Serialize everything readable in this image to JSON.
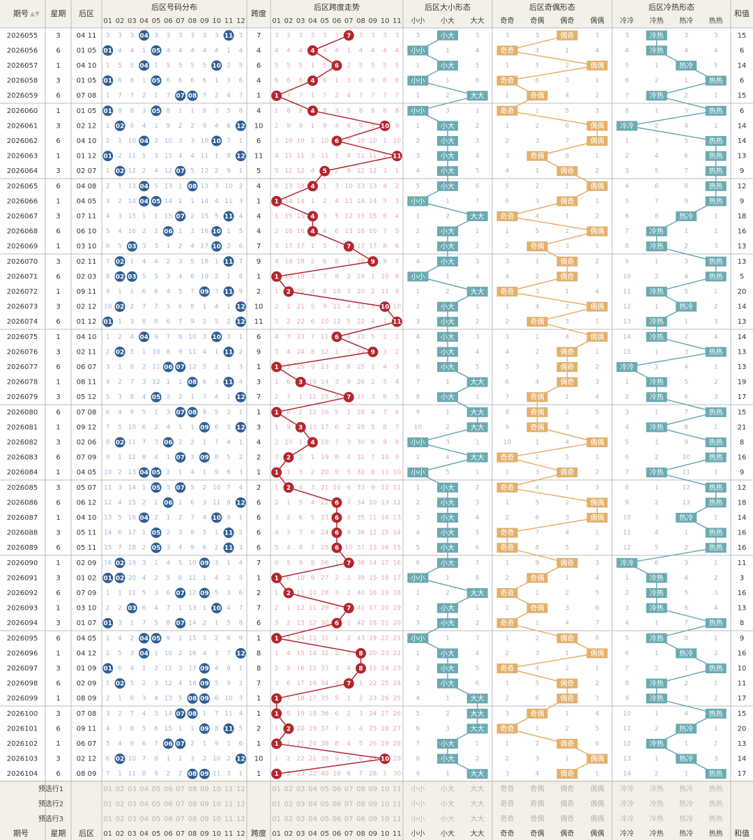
{
  "headers": {
    "issue": "期号",
    "weekday": "星期",
    "back": "后区",
    "distribution": "后区号码分布",
    "span": "跨度",
    "span_trend": "后区跨度走势",
    "size": "后区大小形态",
    "parity": "后区奇偶形态",
    "hotcold": "后区冷热形态",
    "sum": "和值",
    "sort_icon": "sort-icon"
  },
  "numbers": [
    "01",
    "02",
    "03",
    "04",
    "05",
    "06",
    "07",
    "08",
    "09",
    "10",
    "11",
    "12"
  ],
  "span_values": [
    "01",
    "02",
    "03",
    "04",
    "05",
    "06",
    "07",
    "08",
    "09",
    "10",
    "11"
  ],
  "size_labels": [
    "小小",
    "小大",
    "大大"
  ],
  "parity_labels": [
    "奇奇",
    "奇偶",
    "偶奇",
    "偶偶"
  ],
  "hotcold_labels": [
    "冷冷",
    "冷热",
    "热冷",
    "热热"
  ],
  "colors": {
    "ball": "#2f5f95",
    "span_ball": "#b3262e",
    "size_box": "#6aaab2",
    "parity_box": "#e3b06a",
    "hotcold_box": "#6aaab2",
    "header_bg": "#f3f0e8"
  },
  "preselect_rows": [
    "预选行1",
    "预选行2",
    "预选行3"
  ],
  "chart_data": {
    "type": "table",
    "rows": [
      {
        "issue": "2026055",
        "weekday": "3",
        "back": "04 11",
        "span": 7,
        "size": "小大",
        "parity": "偶奇",
        "hotcold": "冷热",
        "sum": 15
      },
      {
        "issue": "2026056",
        "weekday": "6",
        "back": "01 05",
        "span": 4,
        "size": "小小",
        "parity": "奇奇",
        "hotcold": "冷热",
        "sum": 6
      },
      {
        "issue": "2026057",
        "weekday": "1",
        "back": "04 10",
        "span": 6,
        "size": "小大",
        "parity": "偶偶",
        "hotcold": "热冷",
        "sum": 14
      },
      {
        "issue": "2026058",
        "weekday": "3",
        "back": "01 05",
        "span": 4,
        "size": "小小",
        "parity": "奇奇",
        "hotcold": "热热",
        "sum": 6
      },
      {
        "issue": "2026059",
        "weekday": "6",
        "back": "07 08",
        "span": 1,
        "size": "大大",
        "parity": "奇偶",
        "hotcold": "冷热",
        "sum": 15
      },
      {
        "issue": "2026060",
        "weekday": "1",
        "back": "01 05",
        "span": 4,
        "size": "小小",
        "parity": "奇奇",
        "hotcold": "热热",
        "sum": 6
      },
      {
        "issue": "2026061",
        "weekday": "3",
        "back": "02 12",
        "span": 10,
        "size": "小大",
        "parity": "偶偶",
        "hotcold": "冷冷",
        "sum": 14
      },
      {
        "issue": "2026062",
        "weekday": "6",
        "back": "04 10",
        "span": 6,
        "size": "小大",
        "parity": "偶偶",
        "hotcold": "热热",
        "sum": 14
      },
      {
        "issue": "2026063",
        "weekday": "1",
        "back": "01 12",
        "span": 11,
        "size": "小大",
        "parity": "奇偶",
        "hotcold": "热热",
        "sum": 13
      },
      {
        "issue": "2026064",
        "weekday": "3",
        "back": "02 07",
        "span": 5,
        "size": "小大",
        "parity": "偶奇",
        "hotcold": "热热",
        "sum": 9
      },
      {
        "issue": "2026065",
        "weekday": "6",
        "back": "04 08",
        "span": 4,
        "size": "小大",
        "parity": "偶偶",
        "hotcold": "热热",
        "sum": 12
      },
      {
        "issue": "2026066",
        "weekday": "1",
        "back": "04 05",
        "span": 1,
        "size": "小小",
        "parity": "偶奇",
        "hotcold": "热热",
        "sum": 9
      },
      {
        "issue": "2026067",
        "weekday": "3",
        "back": "07 11",
        "span": 4,
        "size": "大大",
        "parity": "奇奇",
        "hotcold": "热冷",
        "sum": 18
      },
      {
        "issue": "2026068",
        "weekday": "6",
        "back": "06 10",
        "span": 4,
        "size": "小大",
        "parity": "偶偶",
        "hotcold": "冷热",
        "sum": 16
      },
      {
        "issue": "2026069",
        "weekday": "1",
        "back": "03 10",
        "span": 7,
        "size": "小大",
        "parity": "奇偶",
        "hotcold": "冷热",
        "sum": 13
      },
      {
        "issue": "2026070",
        "weekday": "3",
        "back": "02 11",
        "span": 9,
        "size": "小大",
        "parity": "偶奇",
        "hotcold": "热热",
        "sum": 13
      },
      {
        "issue": "2026071",
        "weekday": "6",
        "back": "02 03",
        "span": 1,
        "size": "小小",
        "parity": "偶奇",
        "hotcold": "热热",
        "sum": 5
      },
      {
        "issue": "2026072",
        "weekday": "1",
        "back": "09 11",
        "span": 2,
        "size": "大大",
        "parity": "奇奇",
        "hotcold": "冷热",
        "sum": 20
      },
      {
        "issue": "2026073",
        "weekday": "3",
        "back": "02 12",
        "span": 10,
        "size": "小大",
        "parity": "偶偶",
        "hotcold": "热冷",
        "sum": 14
      },
      {
        "issue": "2026074",
        "weekday": "6",
        "back": "01 12",
        "span": 11,
        "size": "小大",
        "parity": "奇偶",
        "hotcold": "冷热",
        "sum": 13
      },
      {
        "issue": "2026075",
        "weekday": "1",
        "back": "04 10",
        "span": 6,
        "size": "小大",
        "parity": "偶偶",
        "hotcold": "冷热",
        "sum": 14
      },
      {
        "issue": "2026076",
        "weekday": "3",
        "back": "02 11",
        "span": 9,
        "size": "小大",
        "parity": "偶奇",
        "hotcold": "热热",
        "sum": 13
      },
      {
        "issue": "2026077",
        "weekday": "6",
        "back": "06 07",
        "span": 1,
        "size": "小大",
        "parity": "偶奇",
        "hotcold": "冷冷",
        "sum": 13
      },
      {
        "issue": "2026078",
        "weekday": "1",
        "back": "08 11",
        "span": 3,
        "size": "大大",
        "parity": "偶奇",
        "hotcold": "冷热",
        "sum": 19
      },
      {
        "issue": "2026079",
        "weekday": "3",
        "back": "05 12",
        "span": 7,
        "size": "小大",
        "parity": "奇偶",
        "hotcold": "冷热",
        "sum": 17
      },
      {
        "issue": "2026080",
        "weekday": "6",
        "back": "07 08",
        "span": 1,
        "size": "大大",
        "parity": "奇偶",
        "hotcold": "热热",
        "sum": 15
      },
      {
        "issue": "2026081",
        "weekday": "1",
        "back": "09 12",
        "span": 3,
        "size": "大大",
        "parity": "奇偶",
        "hotcold": "冷热",
        "sum": 21
      },
      {
        "issue": "2026082",
        "weekday": "3",
        "back": "02 06",
        "span": 4,
        "size": "小小",
        "parity": "偶偶",
        "hotcold": "热热",
        "sum": 8
      },
      {
        "issue": "2026083",
        "weekday": "6",
        "back": "07 09",
        "span": 2,
        "size": "大大",
        "parity": "奇奇",
        "hotcold": "热热",
        "sum": 16
      },
      {
        "issue": "2026084",
        "weekday": "1",
        "back": "04 05",
        "span": 1,
        "size": "小小",
        "parity": "偶奇",
        "hotcold": "冷热",
        "sum": 9
      },
      {
        "issue": "2026085",
        "weekday": "3",
        "back": "05 07",
        "span": 2,
        "size": "小大",
        "parity": "奇奇",
        "hotcold": "热热",
        "sum": 12
      },
      {
        "issue": "2026086",
        "weekday": "6",
        "back": "06 12",
        "span": 6,
        "size": "小大",
        "parity": "偶偶",
        "hotcold": "热热",
        "sum": 18
      },
      {
        "issue": "2026087",
        "weekday": "1",
        "back": "04 10",
        "span": 6,
        "size": "小大",
        "parity": "偶偶",
        "hotcold": "热冷",
        "sum": 14
      },
      {
        "issue": "2026088",
        "weekday": "3",
        "back": "05 11",
        "span": 6,
        "size": "小大",
        "parity": "奇奇",
        "hotcold": "热热",
        "sum": 16
      },
      {
        "issue": "2026089",
        "weekday": "6",
        "back": "05 11",
        "span": 6,
        "size": "小大",
        "parity": "奇奇",
        "hotcold": "热热",
        "sum": 16
      },
      {
        "issue": "2026090",
        "weekday": "1",
        "back": "02 09",
        "span": 7,
        "size": "小大",
        "parity": "偶奇",
        "hotcold": "冷冷",
        "sum": 11
      },
      {
        "issue": "2026091",
        "weekday": "3",
        "back": "01 02",
        "span": 1,
        "size": "小小",
        "parity": "奇偶",
        "hotcold": "冷热",
        "sum": 3
      },
      {
        "issue": "2026092",
        "weekday": "6",
        "back": "07 09",
        "span": 2,
        "size": "大大",
        "parity": "奇奇",
        "hotcold": "冷热",
        "sum": 16
      },
      {
        "issue": "2026093",
        "weekday": "1",
        "back": "03 10",
        "span": 7,
        "size": "小大",
        "parity": "奇偶",
        "hotcold": "冷热",
        "sum": 13
      },
      {
        "issue": "2026094",
        "weekday": "3",
        "back": "01 07",
        "span": 6,
        "size": "小大",
        "parity": "奇奇",
        "hotcold": "热热",
        "sum": 8
      },
      {
        "issue": "2026095",
        "weekday": "6",
        "back": "04 05",
        "span": 1,
        "size": "小小",
        "parity": "偶奇",
        "hotcold": "冷热",
        "sum": 9
      },
      {
        "issue": "2026096",
        "weekday": "1",
        "back": "04 12",
        "span": 8,
        "size": "小大",
        "parity": "偶偶",
        "hotcold": "热冷",
        "sum": 16
      },
      {
        "issue": "2026097",
        "weekday": "3",
        "back": "01 09",
        "span": 8,
        "size": "小大",
        "parity": "奇奇",
        "hotcold": "热热",
        "sum": 10
      },
      {
        "issue": "2026098",
        "weekday": "6",
        "back": "02 09",
        "span": 7,
        "size": "小大",
        "parity": "偶奇",
        "hotcold": "冷热",
        "sum": 11
      },
      {
        "issue": "2026099",
        "weekday": "1",
        "back": "08 09",
        "span": 1,
        "size": "大大",
        "parity": "偶奇",
        "hotcold": "冷热",
        "sum": 17
      },
      {
        "issue": "2026100",
        "weekday": "3",
        "back": "07 08",
        "span": 1,
        "size": "大大",
        "parity": "奇偶",
        "hotcold": "热热",
        "sum": 15
      },
      {
        "issue": "2026101",
        "weekday": "6",
        "back": "09 11",
        "span": 2,
        "size": "大大",
        "parity": "奇奇",
        "hotcold": "热冷",
        "sum": 20
      },
      {
        "issue": "2026102",
        "weekday": "1",
        "back": "06 07",
        "span": 1,
        "size": "小大",
        "parity": "偶奇",
        "hotcold": "冷热",
        "sum": 13
      },
      {
        "issue": "2026103",
        "weekday": "3",
        "back": "02 12",
        "span": 10,
        "size": "小大",
        "parity": "偶偶",
        "hotcold": "热冷",
        "sum": 14
      },
      {
        "issue": "2026104",
        "weekday": "6",
        "back": "08 09",
        "span": 1,
        "size": "大大",
        "parity": "偶奇",
        "hotcold": "热热",
        "sum": 17
      }
    ]
  }
}
